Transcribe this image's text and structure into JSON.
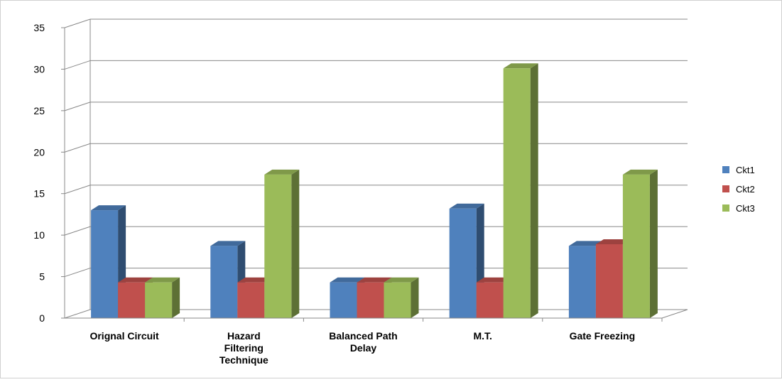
{
  "chart_data": {
    "type": "bar",
    "categories": [
      "Orignal Circuit",
      "Hazard Filtering Technique",
      "Balanced Path Delay",
      "M.T.",
      "Gate Freezing"
    ],
    "category_lines": [
      [
        "Orignal Circuit"
      ],
      [
        "Hazard",
        "Filtering",
        "Technique"
      ],
      [
        "Balanced Path",
        "Delay"
      ],
      [
        "M.T."
      ],
      [
        "Gate Freezing"
      ]
    ],
    "series": [
      {
        "name": "Ckt1",
        "values": [
          13,
          8.7,
          4.3,
          13.2,
          8.7
        ],
        "color": "#4F81BD"
      },
      {
        "name": "Ckt2",
        "values": [
          4.3,
          4.3,
          4.3,
          4.3,
          8.9
        ],
        "color": "#C0504D"
      },
      {
        "name": "Ckt3",
        "values": [
          4.3,
          17.3,
          4.3,
          30.1,
          17.3
        ],
        "color": "#9BBB59"
      }
    ],
    "ylim": [
      0,
      35
    ],
    "yticks": [
      0,
      5,
      10,
      15,
      20,
      25,
      30,
      35
    ],
    "grid": true,
    "legend_position": "right",
    "three_d": true
  }
}
